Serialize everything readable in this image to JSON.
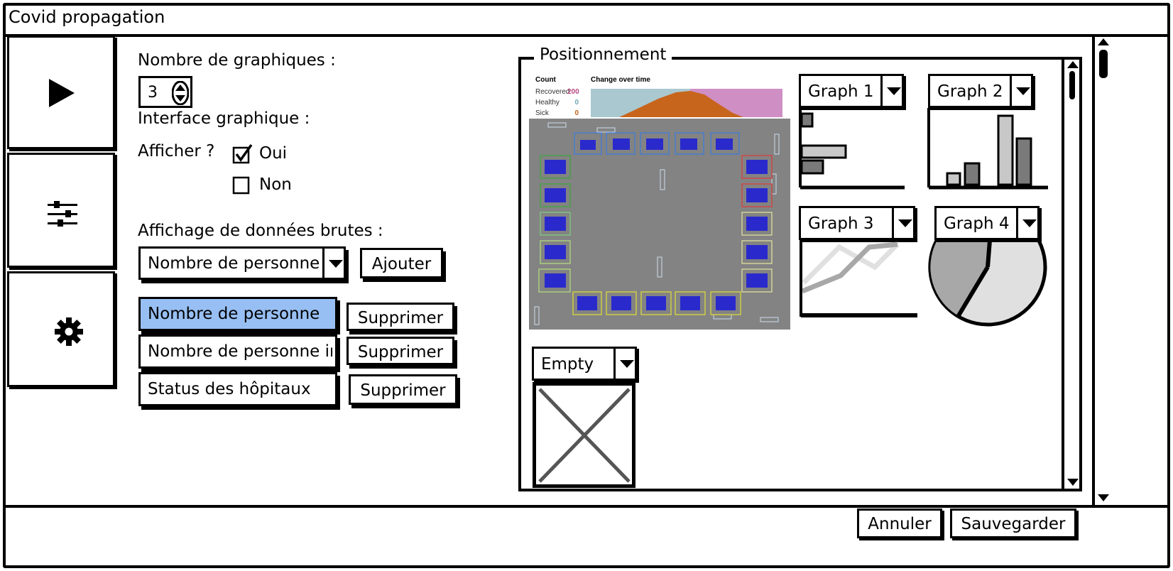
{
  "window": {
    "title": "Covid propagation"
  },
  "sidebar": {
    "items": [
      {
        "name": "play",
        "icon": "play-icon"
      },
      {
        "name": "sliders",
        "icon": "sliders-icon"
      },
      {
        "name": "settings",
        "icon": "gear-icon"
      }
    ]
  },
  "form": {
    "graph_count_label": "Nombre de graphiques :",
    "graph_count_value": "3",
    "ui_label": "Interface graphique :",
    "show_label": "Afficher ?",
    "show_yes": "Oui",
    "show_no": "Non",
    "show_yes_checked": true,
    "raw_data_label": "Affichage de données brutes :",
    "raw_data_select": "Nombre de personne",
    "add_button": "Ajouter",
    "raw_items": [
      {
        "label": "Nombre de personne",
        "selected": true
      },
      {
        "label": "Nombre de personne int",
        "selected": false
      },
      {
        "label": "Status des hôpitaux",
        "selected": false
      }
    ],
    "delete_button": "Supprimer",
    "selection_color": "#97bff3"
  },
  "positioning": {
    "title": "Positionnement",
    "simulation": {
      "count_title": "Count",
      "change_title": "Change over time",
      "stats": [
        {
          "label": "Recovered",
          "value": "200",
          "color": "#b5487f"
        },
        {
          "label": "Healthy",
          "value": "0",
          "color": "#6fa6b5"
        },
        {
          "label": "Sick",
          "value": "0",
          "color": "#c8651c"
        }
      ]
    },
    "graphs": [
      {
        "label": "Graph 1"
      },
      {
        "label": "Graph 2"
      },
      {
        "label": "Graph 3"
      },
      {
        "label": "Graph 4"
      },
      {
        "label": "Empty"
      }
    ]
  },
  "footer": {
    "cancel": "Annuler",
    "save": "Sauvegarder"
  }
}
